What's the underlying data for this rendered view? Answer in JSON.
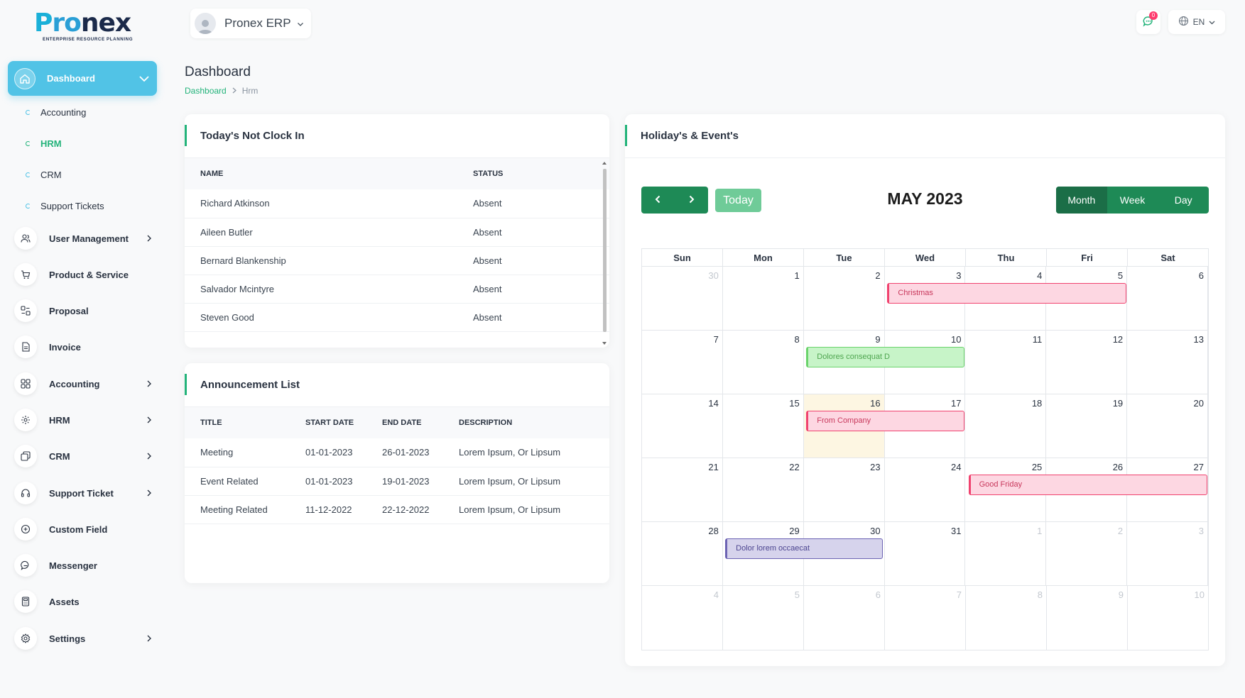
{
  "brand": {
    "logo_p": "P",
    "logo_ro": "ro",
    "logo_nex": "nex",
    "tagline": "ENTERPRISE RESOURCE PLANNING"
  },
  "header": {
    "project_name": "Pronex ERP",
    "messages_badge": "0",
    "language": "EN"
  },
  "sidebar": {
    "dashboard": "Dashboard",
    "sub_items": [
      "Accounting",
      "HRM",
      "CRM",
      "Support Tickets"
    ],
    "items": [
      {
        "label": "User Management",
        "icon": "users-icon",
        "arrow": true
      },
      {
        "label": "Product & Service",
        "icon": "cart-icon",
        "arrow": false
      },
      {
        "label": "Proposal",
        "icon": "proposal-icon",
        "arrow": false
      },
      {
        "label": "Invoice",
        "icon": "invoice-icon",
        "arrow": false
      },
      {
        "label": "Accounting",
        "icon": "grid-icon",
        "arrow": true
      },
      {
        "label": "HRM",
        "icon": "hrm-icon",
        "arrow": true
      },
      {
        "label": "CRM",
        "icon": "crm-icon",
        "arrow": true
      },
      {
        "label": "Support Ticket",
        "icon": "headset-icon",
        "arrow": true
      },
      {
        "label": "Custom Field",
        "icon": "plus-circle-icon",
        "arrow": false
      },
      {
        "label": "Messenger",
        "icon": "chat-icon",
        "arrow": false
      },
      {
        "label": "Assets",
        "icon": "calculator-icon",
        "arrow": false
      },
      {
        "label": "Settings",
        "icon": "gear-icon",
        "arrow": true
      }
    ]
  },
  "page": {
    "title": "Dashboard",
    "breadcrumb": [
      "Dashboard",
      "Hrm"
    ]
  },
  "not_clock_in": {
    "title": "Today's Not Clock In",
    "columns": [
      "NAME",
      "STATUS"
    ],
    "rows": [
      [
        "Richard Atkinson",
        "Absent"
      ],
      [
        "Aileen Butler",
        "Absent"
      ],
      [
        "Bernard Blankenship",
        "Absent"
      ],
      [
        "Salvador Mcintyre",
        "Absent"
      ],
      [
        "Steven Good",
        "Absent"
      ]
    ]
  },
  "announcements": {
    "title": "Announcement List",
    "columns": [
      "TITLE",
      "START DATE",
      "END DATE",
      "DESCRIPTION"
    ],
    "rows": [
      [
        "Meeting",
        "01-01-2023",
        "26-01-2023",
        "Lorem Ipsum, Or Lipsum"
      ],
      [
        "Event Related",
        "01-01-2023",
        "19-01-2023",
        "Lorem Ipsum, Or Lipsum"
      ],
      [
        "Meeting Related",
        "11-12-2022",
        "22-12-2022",
        "Lorem Ipsum, Or Lipsum"
      ]
    ]
  },
  "calendar": {
    "title": "Holiday's & Event's",
    "month_label": "MAY 2023",
    "today_label": "Today",
    "views": [
      "Month",
      "Week",
      "Day"
    ],
    "active_view": "Month",
    "dow": [
      "Sun",
      "Mon",
      "Tue",
      "Wed",
      "Thu",
      "Fri",
      "Sat"
    ],
    "weeks": [
      [
        30,
        1,
        2,
        3,
        4,
        5,
        6
      ],
      [
        7,
        8,
        9,
        10,
        11,
        12,
        13
      ],
      [
        14,
        15,
        16,
        17,
        18,
        19,
        20
      ],
      [
        21,
        22,
        23,
        24,
        25,
        26,
        27
      ],
      [
        28,
        29,
        30,
        31,
        1,
        2,
        3
      ],
      [
        4,
        5,
        6,
        7,
        8,
        9,
        10
      ]
    ],
    "today": "2023-05-16",
    "events": [
      {
        "title": "Christmas",
        "start": "2023-05-03",
        "end": "2023-05-05",
        "color": "red"
      },
      {
        "title": "Dolores consequat D",
        "start": "2023-05-09",
        "end": "2023-05-10",
        "color": "green"
      },
      {
        "title": "From Company",
        "start": "2023-05-16",
        "end": "2023-05-17",
        "color": "red"
      },
      {
        "title": "Good Friday",
        "start": "2023-05-25",
        "end": "2023-05-27",
        "color": "red"
      },
      {
        "title": "Dolor lorem occaecat",
        "start": "2023-05-29",
        "end": "2023-05-30",
        "color": "purple"
      }
    ]
  },
  "colors": {
    "accent": "#23b37a",
    "sidebar_active": "#51c3e6",
    "calendar_btn": "#1e8a56",
    "event_red": "#f0426f",
    "event_green": "#6ad36b",
    "event_purple": "#6c63b3"
  }
}
